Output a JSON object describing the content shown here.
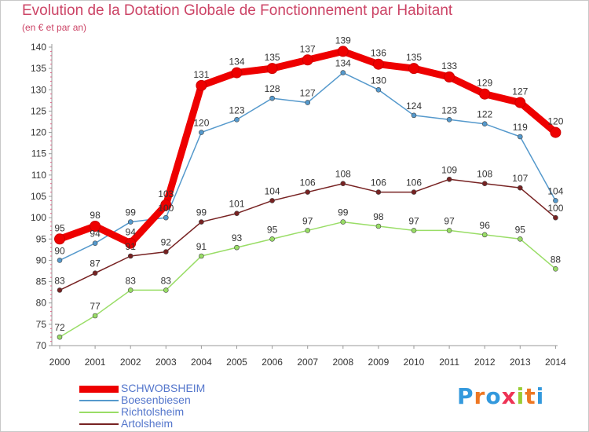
{
  "title": "Evolution de la Dotation Globale de Fonctionnement par Habitant",
  "subtitle": "(en € et par an)",
  "logo": "Proxiti",
  "chart_data": {
    "type": "line",
    "x": [
      "2000",
      "2001",
      "2002",
      "2003",
      "2004",
      "2005",
      "2006",
      "2007",
      "2008",
      "2009",
      "2010",
      "2011",
      "2012",
      "2013",
      "2014"
    ],
    "ylim": [
      70,
      140
    ],
    "yticks": [
      70,
      75,
      80,
      85,
      90,
      95,
      100,
      105,
      110,
      115,
      120,
      125,
      130,
      135,
      140
    ],
    "grid": false,
    "legend_position": "bottom-left",
    "series": [
      {
        "name": "SCHWOBSHEIM",
        "color": "#ee0000",
        "values": [
          95,
          98,
          94,
          103,
          131,
          134,
          135,
          137,
          139,
          136,
          135,
          133,
          129,
          127,
          120
        ]
      },
      {
        "name": "Boesenbiesen",
        "color": "#5599cc",
        "values": [
          90,
          94,
          99,
          100,
          120,
          123,
          128,
          127,
          134,
          130,
          124,
          123,
          122,
          119,
          104
        ]
      },
      {
        "name": "Richtolsheim",
        "color": "#99dd66",
        "values": [
          72,
          77,
          83,
          83,
          91,
          93,
          95,
          97,
          99,
          98,
          97,
          97,
          96,
          95,
          88
        ]
      },
      {
        "name": "Artolsheim",
        "color": "#772222",
        "values": [
          83,
          87,
          91,
          92,
          99,
          101,
          104,
          106,
          108,
          106,
          106,
          109,
          108,
          107,
          100
        ]
      }
    ]
  }
}
